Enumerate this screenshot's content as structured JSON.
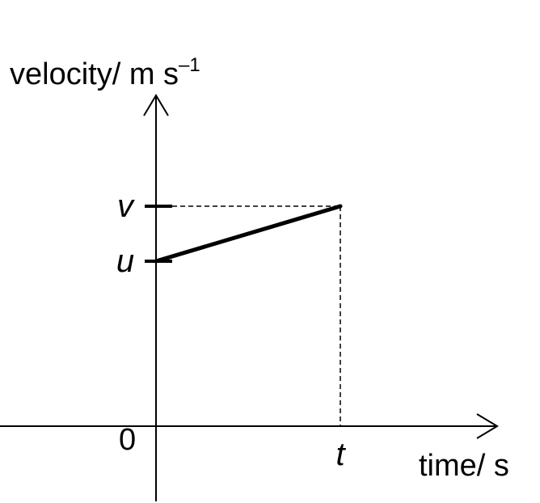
{
  "chart_data": {
    "type": "line",
    "xlabel": "time/ s",
    "ylabel": "velocity/ m s",
    "ylabel_exponent": "–1",
    "origin_label": "0",
    "x_ticks": [
      {
        "label": "t",
        "value": 1
      }
    ],
    "y_ticks": [
      {
        "label": "u",
        "value": 0.6
      },
      {
        "label": "v",
        "value": 0.8
      }
    ],
    "xlim": [
      0,
      1.7
    ],
    "ylim": [
      0,
      1.2
    ],
    "grid": false,
    "series": [
      {
        "x": [
          0,
          1
        ],
        "y": [
          0.6,
          0.8
        ],
        "color": "#000000"
      }
    ],
    "guides": [
      {
        "from": [
          0,
          0.8
        ],
        "to": [
          1,
          0.8
        ],
        "style": "dashed"
      },
      {
        "from": [
          1,
          0.8
        ],
        "to": [
          1,
          0
        ],
        "style": "dashed"
      }
    ]
  }
}
